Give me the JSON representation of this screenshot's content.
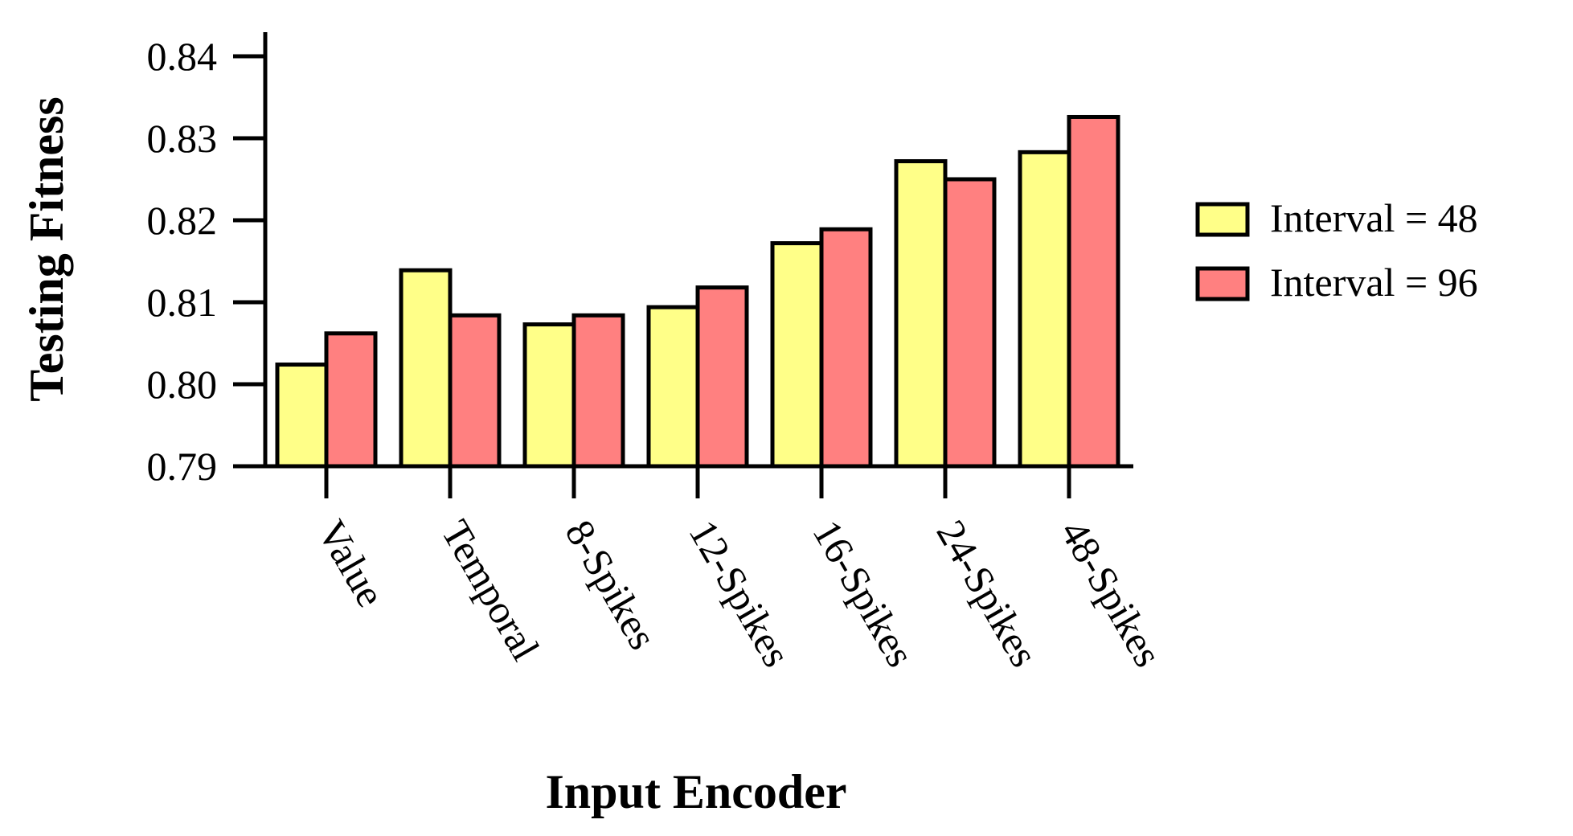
{
  "chart_data": {
    "type": "bar",
    "title": "",
    "xlabel": "Input Encoder",
    "ylabel": "Testing Fitness",
    "categories": [
      "Value",
      "Temporal",
      "8-Spikes",
      "12-Spikes",
      "16-Spikes",
      "24-Spikes",
      "48-Spikes"
    ],
    "series": [
      {
        "name": "Interval = 48",
        "color": "#ffff88",
        "values": [
          0.8024,
          0.8139,
          0.8073,
          0.8094,
          0.8172,
          0.8272,
          0.8283
        ]
      },
      {
        "name": "Interval = 96",
        "color": "#ff8080",
        "values": [
          0.8062,
          0.8084,
          0.8084,
          0.8118,
          0.8189,
          0.825,
          0.8326
        ]
      }
    ],
    "ylim": [
      0.79,
      0.8425
    ],
    "yticks": [
      0.79,
      0.8,
      0.81,
      0.82,
      0.83,
      0.84
    ],
    "ytick_labels": [
      "0.79",
      "0.80",
      "0.81",
      "0.82",
      "0.83",
      "0.84"
    ],
    "grid": false,
    "legend_position": "right"
  }
}
